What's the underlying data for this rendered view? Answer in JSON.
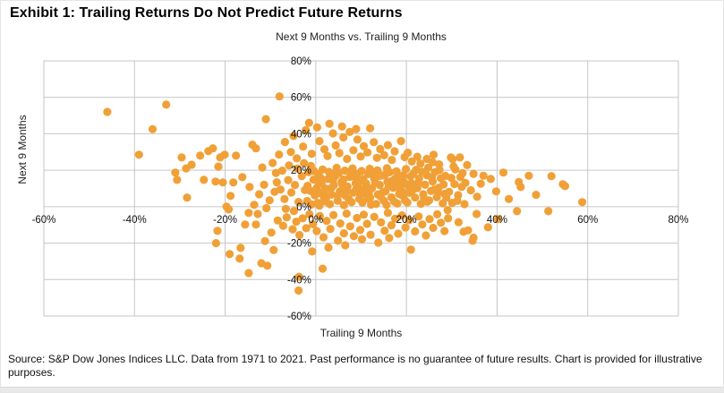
{
  "header": {
    "title": "Exhibit 1: Trailing Returns Do Not Predict Future Returns"
  },
  "footer": {
    "source": "Source: S&P Dow Jones Indices LLC. Data from 1971 to 2021. Past performance is no guarantee of future results. Chart is provided for illustrative purposes."
  },
  "chart_data": {
    "type": "scatter",
    "title": "Next 9 Months vs. Trailing 9 Months",
    "xlabel": "Trailing 9 Months",
    "ylabel": "Next 9 Months",
    "xlim": [
      -60,
      80
    ],
    "ylim": [
      -60,
      80
    ],
    "x_ticks": [
      -60,
      -40,
      -20,
      0,
      20,
      40,
      60,
      80
    ],
    "y_ticks": [
      80,
      60,
      40,
      20,
      0,
      -20,
      -40,
      -60
    ],
    "tick_format": "percent",
    "grid": true,
    "legend": "none",
    "point_color": "#F0A037",
    "grid_color": "#c6c6c6",
    "marker_radius": 4.6,
    "points": [
      [
        -46,
        52
      ],
      [
        -33,
        56
      ],
      [
        -36,
        42.5
      ],
      [
        -39,
        28.5
      ],
      [
        -8,
        60.5
      ],
      [
        -11,
        48
      ],
      [
        -1.5,
        46
      ],
      [
        3,
        45.5
      ],
      [
        12,
        43
      ],
      [
        -3.8,
        -46
      ],
      [
        -3.7,
        -38.5
      ],
      [
        58.8,
        2.5
      ],
      [
        54.5,
        12.3
      ],
      [
        -29.6,
        27
      ],
      [
        -27.4,
        23
      ],
      [
        -25.5,
        28
      ],
      [
        -23.7,
        30.5
      ],
      [
        -22.7,
        32
      ],
      [
        -21.1,
        27
      ],
      [
        -20.1,
        28.5
      ],
      [
        -31,
        18.7
      ],
      [
        -28.6,
        21
      ],
      [
        -30.6,
        14.7
      ],
      [
        -24.7,
        14.7
      ],
      [
        -22.1,
        13.8
      ],
      [
        -20.5,
        13.3
      ],
      [
        -28.4,
        5
      ],
      [
        -21.7,
        -13.3
      ],
      [
        -22,
        -20
      ],
      [
        -19,
        -26
      ],
      [
        -16.8,
        -28.5
      ],
      [
        -14.8,
        -36.4
      ],
      [
        -21.5,
        22
      ],
      [
        -17.6,
        28
      ],
      [
        -18.2,
        13.3
      ],
      [
        -16.2,
        16.2
      ],
      [
        -18.8,
        5.9
      ],
      [
        -14.6,
        10.8
      ],
      [
        -13.6,
        1
      ],
      [
        -19.7,
        0
      ],
      [
        -19.2,
        -1.5
      ],
      [
        -14.8,
        -3.4
      ],
      [
        -12.8,
        -4
      ],
      [
        -15.6,
        -9.8
      ],
      [
        -13.2,
        -9.8
      ],
      [
        -14,
        34
      ],
      [
        -13.2,
        32
      ],
      [
        -12,
        -31
      ],
      [
        -10.7,
        -32.4
      ],
      [
        -16.6,
        -22.6
      ],
      [
        -9.5,
        24
      ],
      [
        -8.8,
        18.5
      ],
      [
        -11.4,
        12
      ],
      [
        -9.1,
        8.2
      ],
      [
        -10.2,
        3.5
      ],
      [
        -8.4,
        -7.6
      ],
      [
        -9.8,
        -14.2
      ],
      [
        -11.8,
        21.5
      ],
      [
        -8.1,
        28.6
      ],
      [
        -12.5,
        6.8
      ],
      [
        -10.9,
        -0.8
      ],
      [
        -8.6,
        13.4
      ],
      [
        -11.2,
        -18.9
      ],
      [
        -9.3,
        -23.8
      ],
      [
        -5.5,
        30
      ],
      [
        -4.2,
        26.5
      ],
      [
        -2.8,
        33
      ],
      [
        -0.9,
        29
      ],
      [
        0.8,
        36
      ],
      [
        1.9,
        31.5
      ],
      [
        2.6,
        27.8
      ],
      [
        3.8,
        40.2
      ],
      [
        4.4,
        33.6
      ],
      [
        5.2,
        29.4
      ],
      [
        6.1,
        38
      ],
      [
        6.9,
        26.2
      ],
      [
        7.5,
        41
      ],
      [
        8.3,
        31
      ],
      [
        9.2,
        36.8
      ],
      [
        9.9,
        27.5
      ],
      [
        10.6,
        33.2
      ],
      [
        11.4,
        29.8
      ],
      [
        12.8,
        35.4
      ],
      [
        13.5,
        26.8
      ],
      [
        14.2,
        31.6
      ],
      [
        15.1,
        28.2
      ],
      [
        15.9,
        33.8
      ],
      [
        16.8,
        25.6
      ],
      [
        17.4,
        30.4
      ],
      [
        18.8,
        36
      ],
      [
        19.6,
        27.2
      ],
      [
        20.3,
        29.6
      ],
      [
        21.2,
        24.8
      ],
      [
        22.4,
        27.4
      ],
      [
        23.1,
        23.6
      ],
      [
        24.5,
        26.2
      ],
      [
        25.8,
        24.4
      ],
      [
        26,
        28.5
      ],
      [
        27.2,
        23.2
      ],
      [
        29.8,
        27
      ],
      [
        30.2,
        26
      ],
      [
        31.8,
        27
      ],
      [
        -6.8,
        35.5
      ],
      [
        -4.9,
        38.8
      ],
      [
        -2.2,
        42
      ],
      [
        0.3,
        43.5
      ],
      [
        5.8,
        44
      ],
      [
        8.9,
        42.6
      ],
      [
        34.8,
        18
      ],
      [
        37,
        17
      ],
      [
        41.4,
        18.7
      ],
      [
        47,
        17
      ],
      [
        44.4,
        -2.5
      ],
      [
        51.3,
        -2.5
      ],
      [
        35.5,
        -4
      ],
      [
        38,
        -11.3
      ],
      [
        33.6,
        -13
      ],
      [
        34.8,
        -17
      ],
      [
        32.6,
        -13.8
      ],
      [
        34.6,
        -18.7
      ],
      [
        33,
        13
      ],
      [
        34.2,
        9
      ],
      [
        35.6,
        5.5
      ],
      [
        31.2,
        3.2
      ],
      [
        32.8,
        1.4
      ],
      [
        36.4,
        12.6
      ],
      [
        39.8,
        8.4
      ],
      [
        42.6,
        4.2
      ],
      [
        45.2,
        10.8
      ],
      [
        40.2,
        -6.8
      ],
      [
        48.6,
        6.5
      ],
      [
        52,
        16.8
      ],
      [
        55,
        11.3
      ],
      [
        44.8,
        13.5
      ],
      [
        38.6,
        15.2
      ],
      [
        31.5,
        -8.5
      ],
      [
        30.8,
        20.4
      ],
      [
        33.4,
        22.8
      ],
      [
        -7.2,
        -10.5
      ],
      [
        -6.4,
        -5.8
      ],
      [
        -5.1,
        -12.4
      ],
      [
        -4.3,
        -8.2
      ],
      [
        -3.6,
        -15.6
      ],
      [
        -2.9,
        -6.4
      ],
      [
        -2.1,
        -11.8
      ],
      [
        -1.4,
        -4.2
      ],
      [
        -0.6,
        -9.6
      ],
      [
        0.2,
        -13.4
      ],
      [
        0.9,
        -5.2
      ],
      [
        1.7,
        -16.8
      ],
      [
        2.4,
        -7.8
      ],
      [
        3.2,
        -12.2
      ],
      [
        3.9,
        -4.6
      ],
      [
        4.9,
        -18.7
      ],
      [
        5.4,
        -9.2
      ],
      [
        6.2,
        -14.6
      ],
      [
        6.8,
        -3.8
      ],
      [
        7.6,
        -10.8
      ],
      [
        8.4,
        -16.2
      ],
      [
        9.1,
        -6.2
      ],
      [
        9.8,
        -12.8
      ],
      [
        10.6,
        -4.4
      ],
      [
        11.3,
        -9.4
      ],
      [
        12.1,
        -15.4
      ],
      [
        12.9,
        -5.6
      ],
      [
        13.8,
        -19.7
      ],
      [
        14.4,
        -8.6
      ],
      [
        15.2,
        -13.2
      ],
      [
        15.9,
        -3.4
      ],
      [
        16.7,
        -10.2
      ],
      [
        17.5,
        -6.6
      ],
      [
        18.2,
        -14.8
      ],
      [
        19,
        -4.8
      ],
      [
        19.8,
        -11.4
      ],
      [
        20.6,
        -7.4
      ],
      [
        21,
        -23.6
      ],
      [
        21.9,
        -13.6
      ],
      [
        22.7,
        -5.4
      ],
      [
        23.5,
        -9.8
      ],
      [
        24.3,
        -15.8
      ],
      [
        25.1,
        -6.8
      ],
      [
        25.9,
        -11.6
      ],
      [
        26.8,
        -4.2
      ],
      [
        27.6,
        -8.8
      ],
      [
        28.4,
        -13.4
      ],
      [
        29.2,
        -6.4
      ],
      [
        1.5,
        -34
      ],
      [
        2.8,
        -22.4
      ],
      [
        -0.8,
        -24.6
      ],
      [
        6.5,
        -21.2
      ],
      [
        10.2,
        -17.9
      ],
      [
        16.2,
        -17.2
      ],
      [
        0.4,
        2.1
      ],
      [
        0.9,
        7.4
      ],
      [
        1.3,
        12.6
      ],
      [
        1.8,
        4.8
      ],
      [
        2.2,
        9.9
      ],
      [
        2.7,
        15.2
      ],
      [
        3.1,
        1.4
      ],
      [
        3.5,
        6.6
      ],
      [
        4,
        11.8
      ],
      [
        4.4,
        17
      ],
      [
        4.8,
        3.2
      ],
      [
        5.3,
        8.4
      ],
      [
        5.7,
        13.6
      ],
      [
        6.2,
        0.8
      ],
      [
        6.6,
        5.9
      ],
      [
        7,
        11.1
      ],
      [
        7.5,
        16.3
      ],
      [
        7.9,
        2.5
      ],
      [
        8.3,
        7.7
      ],
      [
        8.8,
        12.9
      ],
      [
        9.2,
        18.1
      ],
      [
        9.6,
        4.3
      ],
      [
        0.6,
        17.8
      ],
      [
        1.5,
        20.4
      ],
      [
        2.9,
        19.1
      ],
      [
        4.6,
        21.3
      ],
      [
        6.4,
        19.8
      ],
      [
        8.1,
        21
      ],
      [
        0.2,
        10.3
      ],
      [
        1.1,
        15.7
      ],
      [
        2.4,
        5.5
      ],
      [
        3.8,
        14.4
      ],
      [
        5.1,
        18.6
      ],
      [
        6.9,
        8.9
      ],
      [
        8.6,
        16.5
      ],
      [
        9.4,
        10.7
      ],
      [
        0.8,
        0.5
      ],
      [
        2.1,
        2.9
      ],
      [
        3.4,
        10.2
      ],
      [
        4.9,
        6.1
      ],
      [
        6.1,
        14.9
      ],
      [
        7.3,
        4.1
      ],
      [
        8.9,
        9.5
      ],
      [
        9.9,
        14.1
      ],
      [
        1.9,
        8.8
      ],
      [
        3.9,
        18.2
      ],
      [
        5.9,
        11.9
      ],
      [
        7.7,
        19.3
      ],
      [
        9.7,
        7.1
      ],
      [
        0.5,
        13.9
      ],
      [
        10.3,
        2.2
      ],
      [
        10.7,
        7.5
      ],
      [
        11.1,
        12.7
      ],
      [
        11.6,
        17.9
      ],
      [
        12,
        4.9
      ],
      [
        12.4,
        10.1
      ],
      [
        12.9,
        15.3
      ],
      [
        13.3,
        1.5
      ],
      [
        13.7,
        6.7
      ],
      [
        14.1,
        11.9
      ],
      [
        14.6,
        17.1
      ],
      [
        15,
        3.3
      ],
      [
        15.4,
        8.5
      ],
      [
        15.8,
        13.7
      ],
      [
        16.3,
        18.9
      ],
      [
        16.7,
        5.1
      ],
      [
        17.1,
        10.3
      ],
      [
        17.6,
        15.5
      ],
      [
        18,
        1.7
      ],
      [
        18.4,
        6.9
      ],
      [
        18.9,
        12.1
      ],
      [
        19.3,
        17.3
      ],
      [
        19.7,
        3.5
      ],
      [
        10.1,
        19.6
      ],
      [
        11.9,
        20.8
      ],
      [
        13.6,
        19.9
      ],
      [
        15.7,
        21.1
      ],
      [
        17.8,
        19.4
      ],
      [
        19.9,
        20.6
      ],
      [
        10.9,
        9.8
      ],
      [
        12.7,
        18.4
      ],
      [
        14.8,
        7.9
      ],
      [
        16.9,
        14.2
      ],
      [
        18.7,
        9.1
      ],
      [
        11.4,
        4.4
      ],
      [
        13.1,
        13.2
      ],
      [
        15.3,
        17.6
      ],
      [
        17.3,
        2.8
      ],
      [
        19.1,
        8.3
      ],
      [
        10.5,
        15.1
      ],
      [
        12.2,
        1.1
      ],
      [
        14.3,
        5.6
      ],
      [
        16.1,
        11.3
      ],
      [
        18.2,
        16.2
      ],
      [
        19.5,
        13.4
      ],
      [
        11.7,
        7.2
      ],
      [
        13.9,
        16.8
      ],
      [
        15.6,
        0.9
      ],
      [
        17.9,
        12.5
      ],
      [
        19.2,
        5.9
      ],
      [
        20.2,
        2.3
      ],
      [
        20.6,
        7.6
      ],
      [
        21.1,
        12.8
      ],
      [
        21.5,
        18
      ],
      [
        21.9,
        5
      ],
      [
        22.4,
        10.2
      ],
      [
        22.8,
        15.4
      ],
      [
        23.2,
        1.6
      ],
      [
        23.7,
        6.8
      ],
      [
        24.1,
        12
      ],
      [
        24.5,
        17.2
      ],
      [
        25,
        3.4
      ],
      [
        25.4,
        8.6
      ],
      [
        25.8,
        13.8
      ],
      [
        26.3,
        19
      ],
      [
        26.7,
        5.2
      ],
      [
        27.1,
        10.4
      ],
      [
        27.6,
        15.6
      ],
      [
        28,
        1.8
      ],
      [
        28.4,
        7
      ],
      [
        22.1,
        20.2
      ],
      [
        24.8,
        21.4
      ],
      [
        27.3,
        20.1
      ],
      [
        20.9,
        16.6
      ],
      [
        23.4,
        19.2
      ],
      [
        25.6,
        16.1
      ],
      [
        28.2,
        12.2
      ],
      [
        21.3,
        8.9
      ],
      [
        23.9,
        4.5
      ],
      [
        26.1,
        9.3
      ],
      [
        28.6,
        16.9
      ],
      [
        20.4,
        11.5
      ],
      [
        22.6,
        13.1
      ],
      [
        24.6,
        2.7
      ],
      [
        26.9,
        7.9
      ],
      [
        28.8,
        4.9
      ],
      [
        -1.9,
        3.1
      ],
      [
        -1.2,
        8.6
      ],
      [
        -0.5,
        14.8
      ],
      [
        -1.6,
        18.9
      ],
      [
        -0.2,
        6.2
      ],
      [
        -1.8,
        11.4
      ],
      [
        -0.9,
        1.2
      ],
      [
        -1.1,
        22.4
      ],
      [
        -0.4,
        19.6
      ],
      [
        -7.8,
        9.4
      ],
      [
        -6.9,
        4.2
      ],
      [
        -6.1,
        14.6
      ],
      [
        -5.4,
        7.8
      ],
      [
        -4.6,
        11.9
      ],
      [
        -3.8,
        2.6
      ],
      [
        -3.1,
        16.8
      ],
      [
        -2.4,
        9.1
      ],
      [
        -7.4,
        19.8
      ],
      [
        -5.9,
        22.6
      ],
      [
        -4.1,
        20.9
      ],
      [
        -2.6,
        23.9
      ],
      [
        -6.6,
        -1.2
      ],
      [
        -4.8,
        -2.4
      ],
      [
        29.4,
        8.1
      ],
      [
        30.6,
        12.4
      ],
      [
        31.4,
        6.3
      ],
      [
        32.2,
        10.9
      ],
      [
        29.9,
        15.8
      ],
      [
        30.1,
        2.1
      ],
      [
        31.9,
        16.2
      ],
      [
        29.1,
        -1.9
      ],
      [
        32.4,
        18.4
      ],
      [
        30.4,
        22.1
      ]
    ]
  }
}
